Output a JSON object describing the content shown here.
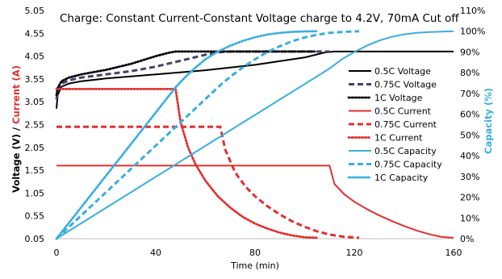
{
  "chart_data": {
    "type": "line",
    "title": "Charge: Constant Current-Constant Voltage charge to 4.2V, 70mA Cut off",
    "xlabel": "Time (min)",
    "ylabel_parts": [
      "Voltage (V)",
      " / ",
      "Current (A)"
    ],
    "y2label": "Capacity (%)",
    "xlim": [
      0,
      160
    ],
    "xticks": [
      0,
      40,
      80,
      120,
      160
    ],
    "ylim": [
      0.05,
      5.05
    ],
    "yticks": [
      0.05,
      0.55,
      1.05,
      1.55,
      2.05,
      2.55,
      3.05,
      3.55,
      4.05,
      4.55,
      5.05
    ],
    "ytick_labels": [
      "0.05",
      "0.55",
      "1.05",
      "1.55",
      "2.05",
      "2.55",
      "3.05",
      "3.55",
      "4.05",
      "4.55",
      "5.05"
    ],
    "y2lim": [
      0,
      110
    ],
    "y2ticks": [
      0,
      10,
      20,
      30,
      40,
      50,
      60,
      70,
      80,
      90,
      100,
      110
    ],
    "y2tick_labels": [
      "0%",
      "10%",
      "20%",
      "30%",
      "40%",
      "50%",
      "60%",
      "70%",
      "80%",
      "90%",
      "100%",
      "110%"
    ],
    "grid": false,
    "legend_position": "right",
    "colors": {
      "voltage": "#000000",
      "voltage_mid": "#4a3f6b",
      "current": "#e03030",
      "capacity": "#3aaee0",
      "voltage_label": "#000000",
      "current_label": "#e03030",
      "capacity_label": "#3aaee0"
    },
    "series": [
      {
        "name": "0.5C Voltage",
        "axis": "left",
        "color": "#000000",
        "dash": "solid",
        "x": [
          0,
          0.5,
          2,
          5,
          10,
          20,
          40,
          60,
          80,
          100,
          108,
          112,
          130,
          160
        ],
        "y": [
          2.9,
          3.2,
          3.38,
          3.45,
          3.5,
          3.56,
          3.65,
          3.74,
          3.86,
          4.02,
          4.13,
          4.15,
          4.15,
          4.15
        ]
      },
      {
        "name": "0.75C Voltage",
        "axis": "left",
        "color": "#4a3f6b",
        "dash": "dash",
        "x": [
          0,
          0.5,
          2,
          5,
          10,
          20,
          30,
          40,
          50,
          60,
          66,
          70,
          90,
          110
        ],
        "y": [
          3.1,
          3.3,
          3.45,
          3.52,
          3.58,
          3.65,
          3.72,
          3.82,
          3.95,
          4.08,
          4.14,
          4.15,
          4.15,
          4.15
        ]
      },
      {
        "name": "1C Voltage",
        "axis": "left",
        "color": "#000000",
        "dash": "dot",
        "x": [
          0,
          0.5,
          2,
          5,
          10,
          20,
          30,
          40,
          45,
          48,
          60,
          80,
          104
        ],
        "y": [
          3.2,
          3.35,
          3.5,
          3.58,
          3.65,
          3.75,
          3.88,
          4.05,
          4.12,
          4.15,
          4.15,
          4.15,
          4.15
        ]
      },
      {
        "name": "0.5C Current",
        "axis": "left",
        "color": "#e03030",
        "dash": "solid",
        "x": [
          0,
          110,
          112,
          116,
          120,
          125,
          130,
          135,
          140,
          145,
          150,
          155,
          160
        ],
        "y": [
          1.65,
          1.65,
          1.25,
          1.02,
          0.86,
          0.7,
          0.56,
          0.44,
          0.33,
          0.23,
          0.15,
          0.09,
          0.07
        ]
      },
      {
        "name": "0.75C Current",
        "axis": "left",
        "color": "#e03030",
        "dash": "dash",
        "x": [
          0,
          66,
          68,
          72,
          76,
          80,
          85,
          90,
          95,
          100,
          105,
          110,
          116,
          122
        ],
        "y": [
          2.5,
          2.5,
          2.0,
          1.5,
          1.2,
          0.98,
          0.76,
          0.58,
          0.43,
          0.31,
          0.21,
          0.14,
          0.09,
          0.07
        ]
      },
      {
        "name": "1C Current",
        "axis": "left",
        "color": "#e03030",
        "dash": "dot",
        "x": [
          0,
          48,
          50,
          53,
          56,
          60,
          65,
          70,
          75,
          80,
          85,
          90,
          95,
          100,
          105
        ],
        "y": [
          3.33,
          3.33,
          2.6,
          2.05,
          1.68,
          1.32,
          0.98,
          0.73,
          0.53,
          0.38,
          0.27,
          0.18,
          0.12,
          0.08,
          0.07
        ]
      },
      {
        "name": "0.5C Capacity",
        "axis": "right",
        "color": "#3aaee0",
        "dash": "solid",
        "x": [
          0,
          110,
          115,
          120,
          125,
          130,
          135,
          140,
          145,
          150,
          155,
          160
        ],
        "y": [
          0,
          82,
          86.5,
          90,
          93,
          95.5,
          97.3,
          98.5,
          99.2,
          99.6,
          99.8,
          100
        ]
      },
      {
        "name": "0.75C Capacity",
        "axis": "right",
        "color": "#3aaee0",
        "dash": "dash",
        "x": [
          0,
          66,
          70,
          75,
          80,
          85,
          90,
          95,
          100,
          105,
          110,
          116,
          122
        ],
        "y": [
          0,
          74,
          78,
          82.5,
          86.5,
          90,
          92.8,
          95.2,
          97,
          98.3,
          99.2,
          99.7,
          100
        ]
      },
      {
        "name": "1C Capacity",
        "axis": "right",
        "color": "#3aaee0",
        "dash": "dot",
        "x": [
          0,
          48,
          52,
          56,
          60,
          65,
          70,
          75,
          80,
          85,
          90,
          95,
          100,
          105
        ],
        "y": [
          0,
          73,
          78,
          82.5,
          86.5,
          90.2,
          93,
          95.3,
          97.1,
          98.4,
          99.2,
          99.7,
          99.9,
          100
        ]
      }
    ]
  }
}
